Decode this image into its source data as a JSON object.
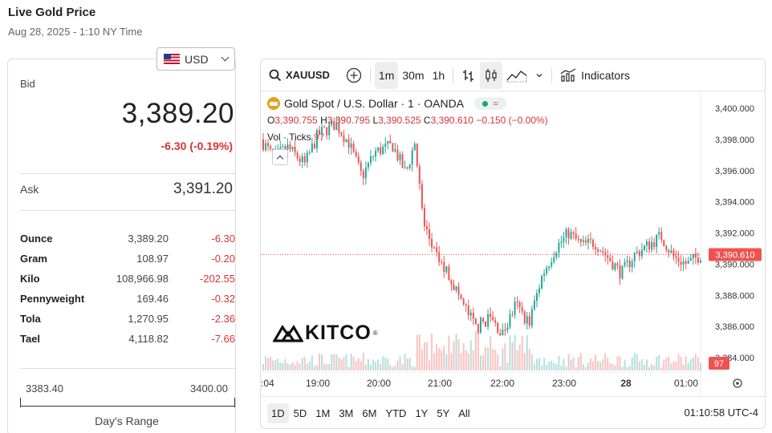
{
  "header": {
    "title": "Live Gold Price",
    "date": "Aug 28, 2025 - 1:10 NY Time"
  },
  "currency": {
    "selected": "USD",
    "flag_icon": "us-flag-icon"
  },
  "quote": {
    "bid_label": "Bid",
    "bid": "3,389.20",
    "change": "-6.30 (-0.19%)",
    "ask_label": "Ask",
    "ask": "3,391.20"
  },
  "units": [
    {
      "name": "Ounce",
      "price": "3,389.20",
      "change": "-6.30"
    },
    {
      "name": "Gram",
      "price": "108.97",
      "change": "-0.20"
    },
    {
      "name": "Kilo",
      "price": "108,966.98",
      "change": "-202.55"
    },
    {
      "name": "Pennyweight",
      "price": "169.46",
      "change": "-0.32"
    },
    {
      "name": "Tola",
      "price": "1,270.95",
      "change": "-2.36"
    },
    {
      "name": "Tael",
      "price": "4,118.82",
      "change": "-7.66"
    }
  ],
  "day_range": {
    "low": "3383.40",
    "high": "3400.00",
    "label": "Day's Range"
  },
  "chart": {
    "toolbar": {
      "symbol": "XAUUSD",
      "intervals": [
        "1m",
        "30m",
        "1h"
      ],
      "active_interval": "1m",
      "indicators_label": "Indicators"
    },
    "legend": {
      "title": "Gold Spot / U.S. Dollar · 1 · OANDA",
      "o_label": "O",
      "o": "3,390.755",
      "h_label": "H",
      "h": "3,390.795",
      "l_label": "L",
      "l": "3,390.525",
      "c_label": "C",
      "c": "3,390.610",
      "chg": "−0.150 (−0.00%)",
      "vol_label": "Vol · Ticks",
      "vol": "97"
    },
    "logo": "KITCO",
    "ranges": [
      "1D",
      "5D",
      "1M",
      "3M",
      "6M",
      "YTD",
      "1Y",
      "5Y",
      "All"
    ],
    "active_range": "1D",
    "clock": "01:10:58 UTC-4",
    "colors": {
      "up": "#26a69a",
      "down": "#ef5350",
      "price_tag": "#ef5350"
    }
  },
  "chart_data": {
    "type": "candlestick",
    "y_ticks": [
      "3,400.000",
      "3,398.000",
      "3,396.000",
      "3,394.000",
      "3,392.000",
      "3,390.000",
      "3,388.000",
      "3,386.000",
      "3,384.000"
    ],
    "ylim": [
      3383.2,
      3400.5
    ],
    "x_ticks": [
      ":04",
      "19:00",
      "20:00",
      "21:00",
      "22:00",
      "23:00",
      "28",
      "01:00"
    ],
    "last_price": "3,390.610",
    "last_volume": "97",
    "path_keypoints": [
      [
        0.0,
        3398.0
      ],
      [
        0.03,
        3396.8
      ],
      [
        0.06,
        3397.5
      ],
      [
        0.1,
        3396.4
      ],
      [
        0.13,
        3398.3
      ],
      [
        0.17,
        3399.0
      ],
      [
        0.2,
        3397.8
      ],
      [
        0.23,
        3395.6
      ],
      [
        0.26,
        3397.2
      ],
      [
        0.3,
        3397.6
      ],
      [
        0.33,
        3395.8
      ],
      [
        0.35,
        3397.8
      ],
      [
        0.37,
        3392.6
      ],
      [
        0.4,
        3390.4
      ],
      [
        0.43,
        3389.2
      ],
      [
        0.46,
        3387.4
      ],
      [
        0.49,
        3385.9
      ],
      [
        0.52,
        3386.6
      ],
      [
        0.55,
        3385.5
      ],
      [
        0.58,
        3387.4
      ],
      [
        0.61,
        3386.2
      ],
      [
        0.64,
        3389.3
      ],
      [
        0.67,
        3391.0
      ],
      [
        0.7,
        3392.0
      ],
      [
        0.73,
        3391.2
      ],
      [
        0.76,
        3391.4
      ],
      [
        0.79,
        3390.4
      ],
      [
        0.82,
        3389.4
      ],
      [
        0.85,
        3390.6
      ],
      [
        0.88,
        3391.2
      ],
      [
        0.91,
        3391.8
      ],
      [
        0.94,
        3390.4
      ],
      [
        0.97,
        3390.0
      ],
      [
        1.0,
        3390.6
      ]
    ]
  }
}
